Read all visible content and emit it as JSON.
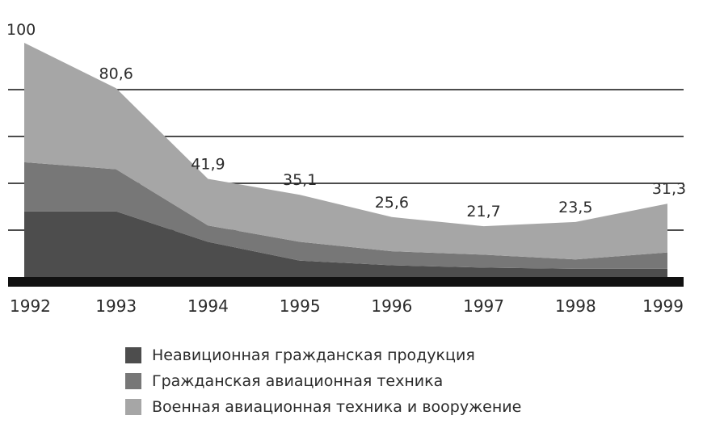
{
  "chart_data": {
    "type": "area",
    "stacked": true,
    "categories": [
      "1992",
      "1993",
      "1994",
      "1995",
      "1996",
      "1997",
      "1998",
      "1999"
    ],
    "series": [
      {
        "name": "Неавиционная гражданская продукция",
        "color": "#4d4d4d",
        "values": [
          28,
          28,
          15,
          7,
          5,
          4,
          3.5,
          3.5
        ]
      },
      {
        "name": "Гражданская авиационная техника",
        "color": "#777777",
        "values": [
          21,
          18,
          7,
          8,
          6,
          5.5,
          4,
          7
        ]
      },
      {
        "name": "Военная авиационная техника и вооружение",
        "color": "#a6a6a6",
        "values": [
          51,
          34.6,
          19.9,
          20.1,
          14.6,
          12.2,
          16,
          20.8
        ]
      }
    ],
    "totals": [
      "100",
      "80,6",
      "41,9",
      "35,1",
      "25,6",
      "21,7",
      "23,5",
      "31,3"
    ],
    "totals_values": [
      100,
      80.6,
      41.9,
      35.1,
      25.6,
      21.7,
      23.5,
      31.3
    ],
    "ylim": [
      0,
      100
    ],
    "gridlines": [
      20,
      40,
      60,
      80
    ],
    "grid": true,
    "legend_position": "bottom",
    "title": "",
    "xlabel": "",
    "ylabel": ""
  }
}
